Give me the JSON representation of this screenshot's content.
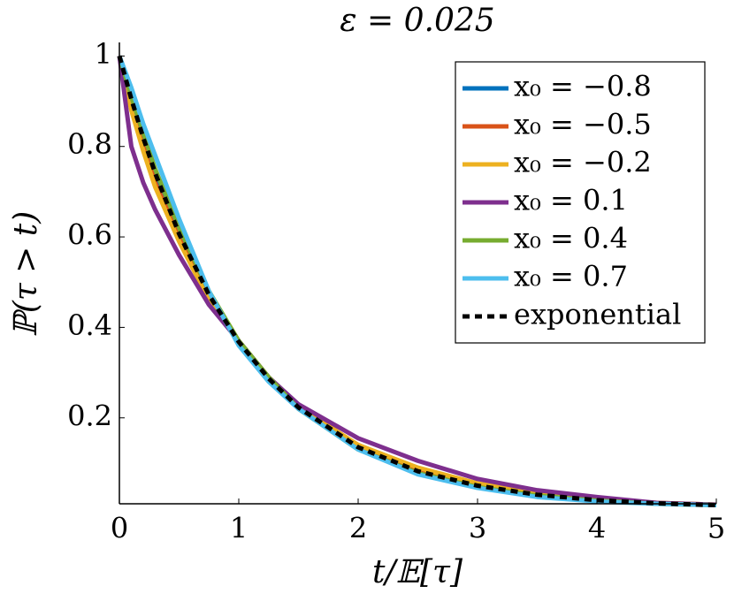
{
  "chart_data": {
    "type": "line",
    "title": "ε = 0.025",
    "x_label": "t/𝔼[τ]",
    "y_label": "ℙ(τ > t)",
    "x": [
      0,
      0.1,
      0.2,
      0.3,
      0.5,
      0.75,
      1,
      1.25,
      1.5,
      2,
      2.5,
      3,
      3.5,
      4,
      4.5,
      5
    ],
    "series": [
      {
        "name": "x₀ = −0.8",
        "color": "#0072bd",
        "values": [
          1,
          0.9,
          0.81,
          0.73,
          0.6,
          0.47,
          0.365,
          0.285,
          0.22,
          0.135,
          0.083,
          0.05,
          0.03,
          0.018,
          0.011,
          0.007
        ]
      },
      {
        "name": "x₀ = −0.5",
        "color": "#d95319",
        "values": [
          1,
          0.89,
          0.8,
          0.72,
          0.6,
          0.465,
          0.365,
          0.285,
          0.22,
          0.14,
          0.085,
          0.052,
          0.032,
          0.02,
          0.012,
          0.008
        ]
      },
      {
        "name": "x₀ = −0.2",
        "color": "#edb120",
        "values": [
          1,
          0.88,
          0.79,
          0.71,
          0.59,
          0.46,
          0.37,
          0.29,
          0.225,
          0.14,
          0.09,
          0.055,
          0.035,
          0.02,
          0.012,
          0.008
        ]
      },
      {
        "name": "x₀ = 0.1",
        "color": "#7e2f8e",
        "values": [
          1,
          0.8,
          0.72,
          0.66,
          0.56,
          0.45,
          0.37,
          0.29,
          0.23,
          0.155,
          0.105,
          0.065,
          0.04,
          0.025,
          0.012,
          0.008
        ]
      },
      {
        "name": "x₀ = 0.4",
        "color": "#77ac30",
        "values": [
          1,
          0.91,
          0.83,
          0.75,
          0.62,
          0.48,
          0.37,
          0.29,
          0.22,
          0.13,
          0.078,
          0.047,
          0.028,
          0.017,
          0.01,
          0.007
        ]
      },
      {
        "name": "x₀ = 0.7",
        "color": "#4dbeee",
        "values": [
          1,
          0.93,
          0.85,
          0.78,
          0.64,
          0.48,
          0.36,
          0.28,
          0.22,
          0.13,
          0.075,
          0.045,
          0.025,
          0.015,
          0.01,
          0.007
        ]
      },
      {
        "name": "exponential",
        "color": "#000000",
        "line_style": "dashed",
        "values": [
          1,
          0.905,
          0.819,
          0.741,
          0.607,
          0.472,
          0.368,
          0.287,
          0.223,
          0.135,
          0.082,
          0.05,
          0.03,
          0.018,
          0.011,
          0.007
        ]
      }
    ],
    "xlim": [
      0,
      5
    ],
    "xticks": [
      0,
      1,
      2,
      3,
      4,
      5
    ],
    "ylim": [
      0.01,
      1.03
    ],
    "yticks": [
      0.2,
      0.4,
      0.6,
      0.8,
      1
    ],
    "legend": "upper right"
  }
}
